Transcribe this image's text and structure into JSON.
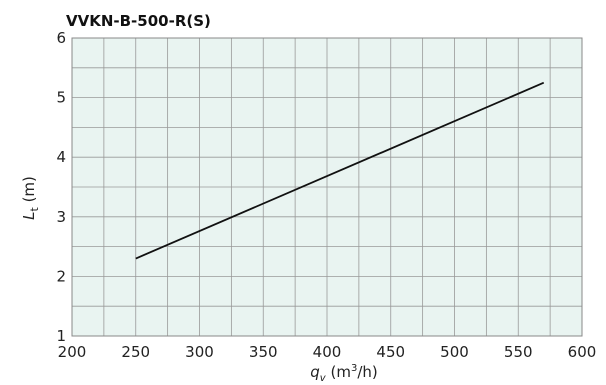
{
  "chart_data": {
    "type": "line",
    "title": "VVKN-B-500-R(S)",
    "xlabel": {
      "symbol": "q",
      "sub": "v",
      "unit_pre": "(m",
      "unit_sup": "3",
      "unit_post": "/h)"
    },
    "ylabel": {
      "symbol": "L",
      "sub": "t",
      "unit": "(m)"
    },
    "xlim": [
      200,
      600
    ],
    "ylim": [
      1,
      6
    ],
    "x_ticks": [
      200,
      250,
      300,
      350,
      400,
      450,
      500,
      550,
      600
    ],
    "y_ticks": [
      1,
      2,
      3,
      4,
      5,
      6
    ],
    "grid": true,
    "grid_x_step": 25,
    "grid_y_step": 0.5,
    "colors": {
      "plot_background": "#e9f4f1",
      "grid": "#999999",
      "line": "#111111"
    },
    "series": [
      {
        "x": [
          250,
          570
        ],
        "y": [
          2.3,
          5.25
        ]
      }
    ]
  }
}
